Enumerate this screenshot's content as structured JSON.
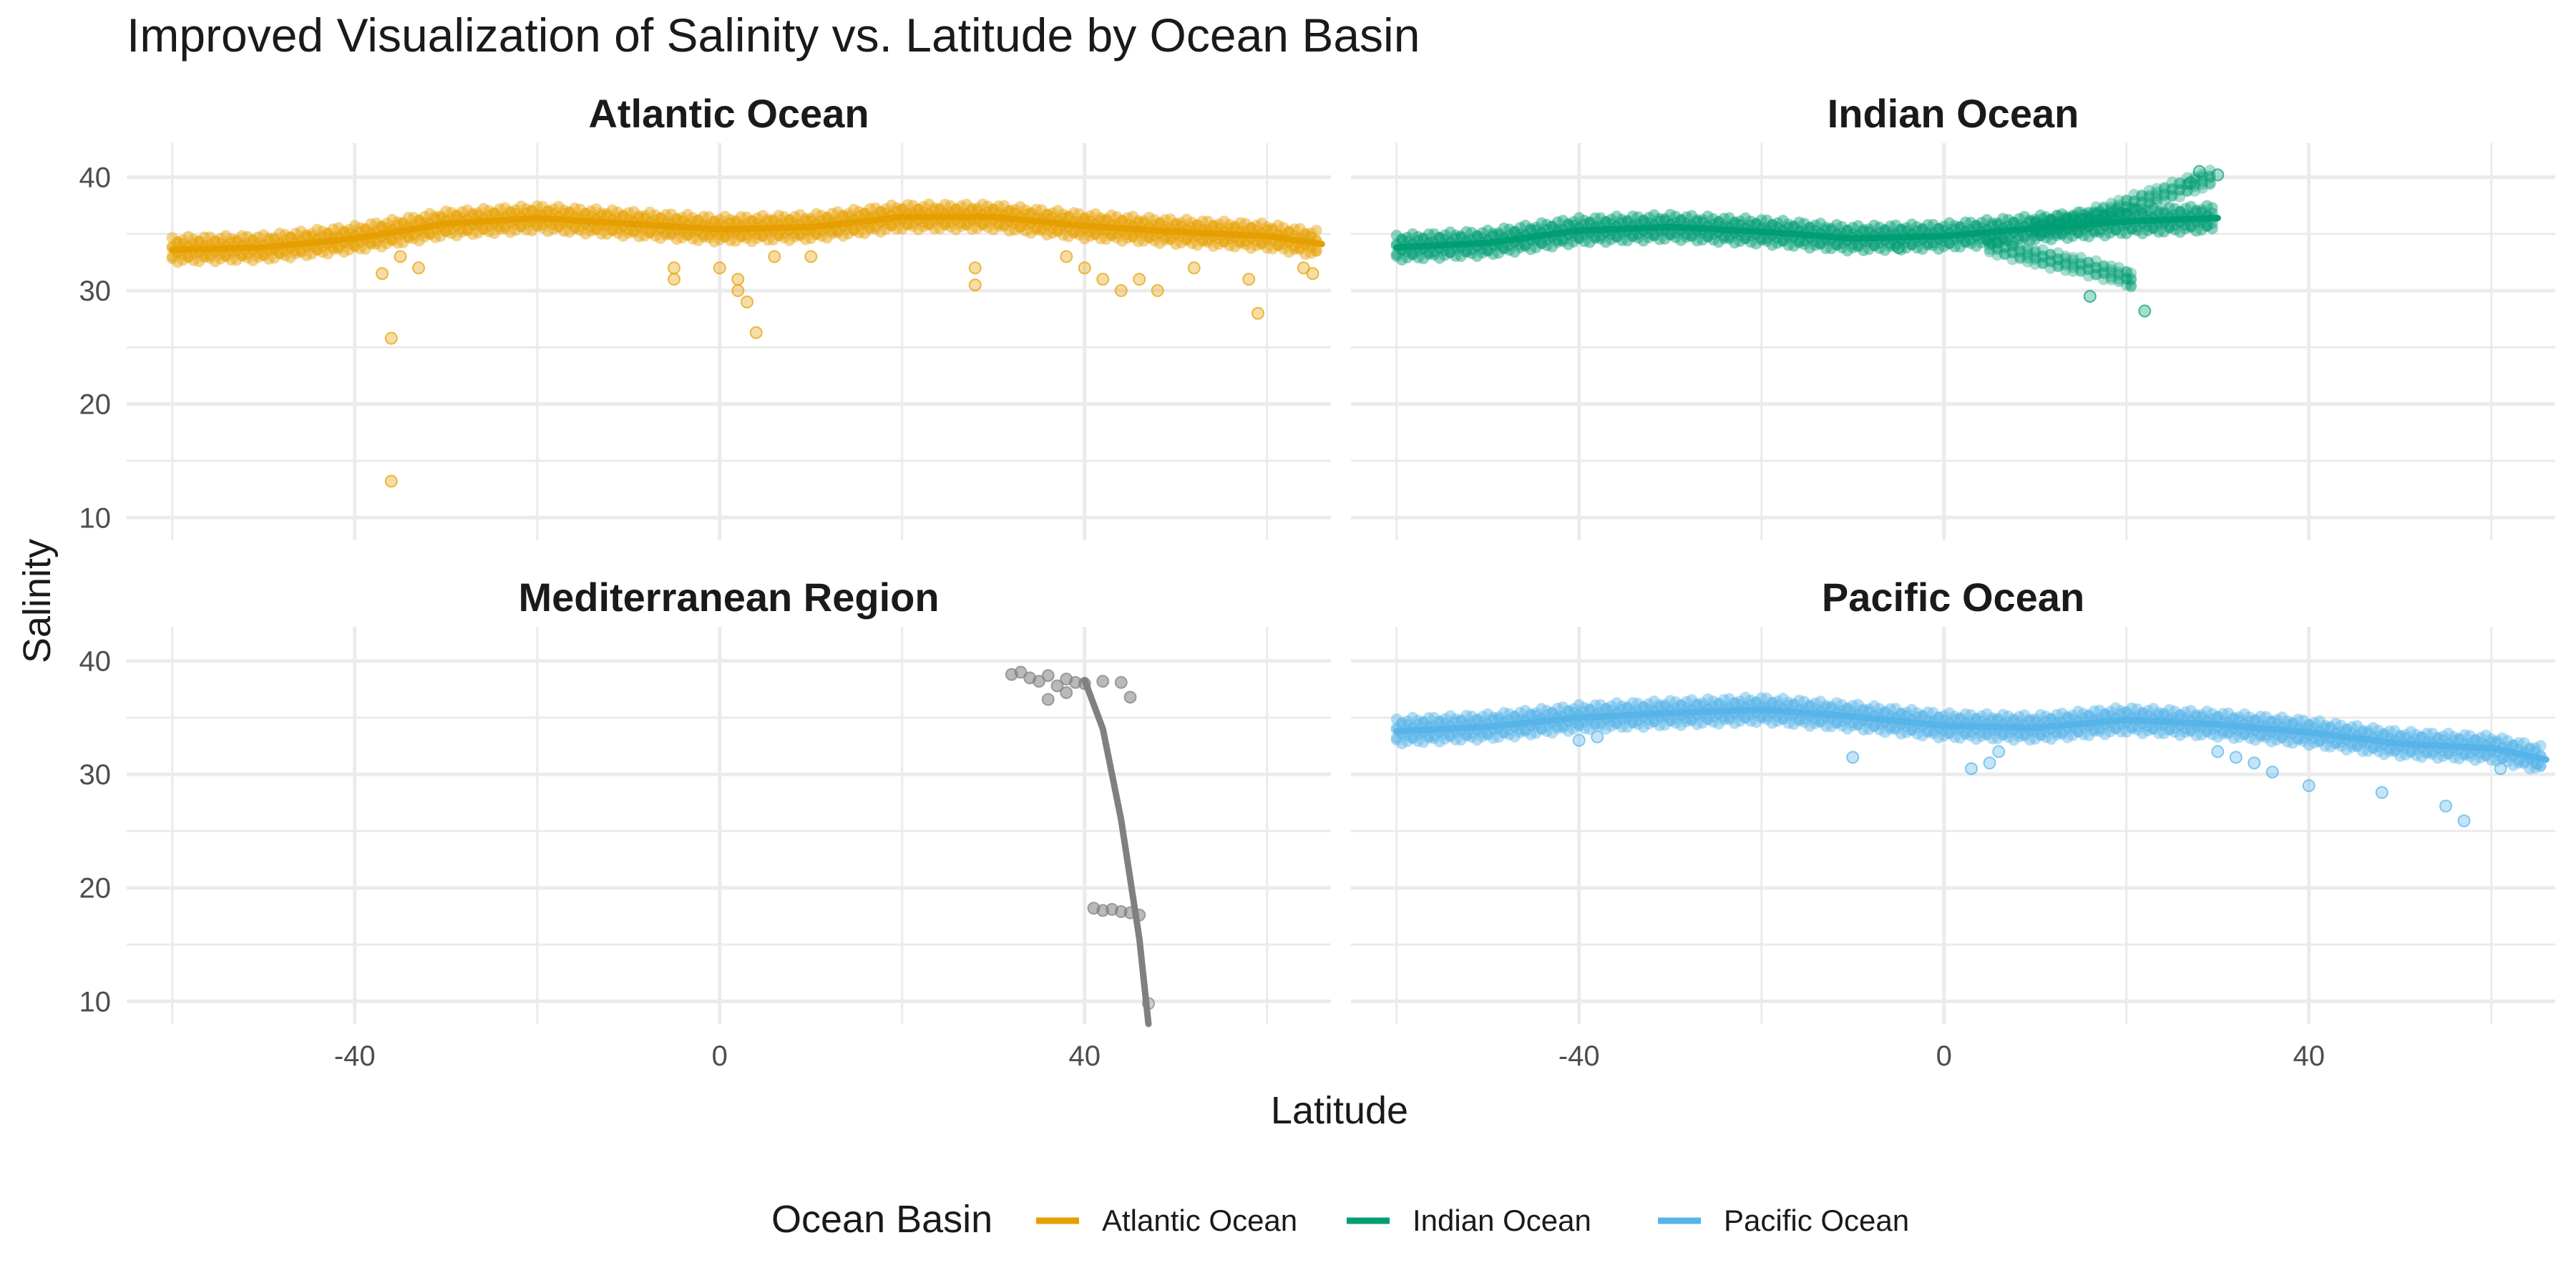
{
  "chart_data": {
    "type": "scatter",
    "title": "Improved Visualization of Salinity vs. Latitude by Ocean Basin",
    "xlabel": "Latitude",
    "ylabel": "Salinity",
    "xlim": [
      -65,
      67
    ],
    "ylim": [
      8,
      43
    ],
    "x_ticks": [
      -40,
      0,
      40
    ],
    "y_ticks": [
      10,
      20,
      30,
      40
    ],
    "grid": true,
    "legend": {
      "title": "Ocean Basin",
      "position": "bottom",
      "entries": [
        {
          "label": "Atlantic Ocean",
          "color": "#E69F00"
        },
        {
          "label": "Indian Ocean",
          "color": "#009E73"
        },
        {
          "label": "Pacific Ocean",
          "color": "#56B4E9"
        }
      ]
    },
    "panels": [
      {
        "name": "Atlantic Ocean",
        "color": "#E69F00",
        "trend": [
          [
            -60,
            33.6
          ],
          [
            -50,
            33.8
          ],
          [
            -40,
            34.6
          ],
          [
            -30,
            35.9
          ],
          [
            -20,
            36.4
          ],
          [
            -10,
            35.9
          ],
          [
            0,
            35.4
          ],
          [
            10,
            35.6
          ],
          [
            20,
            36.5
          ],
          [
            30,
            36.5
          ],
          [
            40,
            35.7
          ],
          [
            50,
            35.2
          ],
          [
            60,
            34.8
          ],
          [
            66,
            34.1
          ]
        ],
        "outliers": [
          [
            -37,
            31.5
          ],
          [
            -35,
            33
          ],
          [
            -33,
            32
          ],
          [
            -36,
            25.8
          ],
          [
            -36,
            13.2
          ],
          [
            -5,
            32
          ],
          [
            -5,
            31
          ],
          [
            0,
            32
          ],
          [
            2,
            31
          ],
          [
            2,
            30
          ],
          [
            3,
            29
          ],
          [
            4,
            26.3
          ],
          [
            6,
            33
          ],
          [
            10,
            33
          ],
          [
            28,
            32
          ],
          [
            28,
            30.5
          ],
          [
            38,
            33
          ],
          [
            40,
            32
          ],
          [
            42,
            31
          ],
          [
            44,
            30
          ],
          [
            46,
            31
          ],
          [
            48,
            30
          ],
          [
            52,
            32
          ],
          [
            58,
            31
          ],
          [
            59,
            28
          ],
          [
            64,
            32
          ],
          [
            65,
            31.5
          ]
        ]
      },
      {
        "name": "Indian Ocean",
        "color": "#009E73",
        "trend": [
          [
            -60,
            33.8
          ],
          [
            -50,
            34.2
          ],
          [
            -40,
            35.3
          ],
          [
            -30,
            35.6
          ],
          [
            -20,
            35.2
          ],
          [
            -10,
            34.6
          ],
          [
            0,
            34.8
          ],
          [
            10,
            35.5
          ],
          [
            20,
            36.1
          ],
          [
            30,
            36.4
          ]
        ],
        "upper_branch": [
          [
            10,
            35.5
          ],
          [
            15,
            36.2
          ],
          [
            20,
            37.5
          ],
          [
            25,
            38.8
          ],
          [
            30,
            40.1
          ]
        ],
        "lower_branch": [
          [
            5,
            34
          ],
          [
            10,
            33
          ],
          [
            15,
            32.2
          ],
          [
            20,
            31.2
          ],
          [
            21,
            30.5
          ]
        ],
        "outliers": [
          [
            16,
            29.5
          ],
          [
            22,
            28.2
          ],
          [
            28,
            40.5
          ],
          [
            30,
            40.2
          ],
          [
            27,
            39.5
          ],
          [
            -5,
            33.8
          ]
        ]
      },
      {
        "name": "Mediterranean Region",
        "color": "#808080",
        "trend": [
          [
            40,
            38.3
          ],
          [
            42,
            34
          ],
          [
            44,
            26
          ],
          [
            46,
            15.5
          ],
          [
            47,
            8
          ]
        ],
        "cluster_high": [
          [
            32,
            38.8
          ],
          [
            33,
            39
          ],
          [
            34,
            38.5
          ],
          [
            35,
            38.2
          ],
          [
            36,
            38.7
          ],
          [
            37,
            37.8
          ],
          [
            38,
            38.4
          ],
          [
            39,
            38.1
          ],
          [
            40,
            38
          ],
          [
            42,
            38.2
          ],
          [
            44,
            38.1
          ],
          [
            45,
            36.8
          ],
          [
            36,
            36.6
          ],
          [
            38,
            37.2
          ]
        ],
        "cluster_low": [
          [
            41,
            18.2
          ],
          [
            42,
            18
          ],
          [
            43,
            18.1
          ],
          [
            44,
            17.9
          ],
          [
            45,
            17.8
          ],
          [
            46,
            17.6
          ]
        ],
        "outliers": [
          [
            47,
            9.8
          ]
        ]
      },
      {
        "name": "Pacific Ocean",
        "color": "#56B4E9",
        "trend": [
          [
            -60,
            33.8
          ],
          [
            -50,
            34.2
          ],
          [
            -40,
            35
          ],
          [
            -30,
            35.4
          ],
          [
            -20,
            35.7
          ],
          [
            -10,
            35.1
          ],
          [
            0,
            34.3
          ],
          [
            10,
            34.1
          ],
          [
            20,
            34.8
          ],
          [
            30,
            34.4
          ],
          [
            40,
            33.7
          ],
          [
            50,
            32.7
          ],
          [
            60,
            32.3
          ],
          [
            66,
            31.3
          ]
        ],
        "outliers": [
          [
            -40,
            33
          ],
          [
            -38,
            33.3
          ],
          [
            -10,
            31.5
          ],
          [
            3,
            30.5
          ],
          [
            5,
            31
          ],
          [
            6,
            32
          ],
          [
            30,
            32
          ],
          [
            32,
            31.5
          ],
          [
            34,
            31
          ],
          [
            36,
            30.2
          ],
          [
            40,
            29
          ],
          [
            48,
            28.4
          ],
          [
            55,
            27.2
          ],
          [
            57,
            25.9
          ],
          [
            61,
            30.5
          ],
          [
            65,
            31
          ]
        ]
      }
    ]
  }
}
